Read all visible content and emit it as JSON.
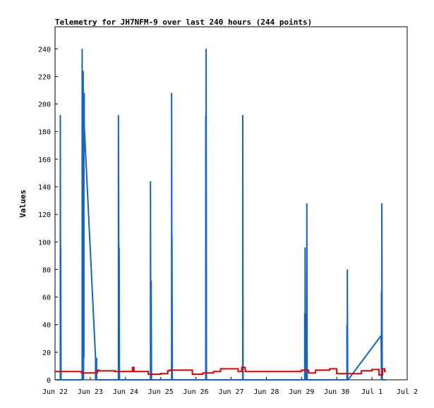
{
  "chart_data": {
    "type": "line",
    "title": "Telemetry for JH7NFM-9 over last 240 hours (244 points)",
    "xlabel": "",
    "ylabel": "Values",
    "x_ticks": [
      "Jun 22",
      "Jun 23",
      "Jun 24",
      "Jun 25",
      "Jun 26",
      "Jun 27",
      "Jun 28",
      "Jun 29",
      "Jun 30",
      "Jul 1",
      "Jul 2"
    ],
    "x_range_days": [
      0,
      10
    ],
    "y_ticks": [
      0,
      20,
      40,
      60,
      80,
      100,
      120,
      140,
      160,
      180,
      200,
      220,
      240
    ],
    "ylim": [
      0,
      256
    ],
    "grid": false,
    "series": [
      {
        "color": "#1565c0",
        "x": [
          0.0,
          0.15,
          0.15,
          0.16,
          0.16,
          0.17,
          0.17,
          0.77,
          0.77,
          0.78,
          0.78,
          0.79,
          0.79,
          0.8,
          0.8,
          0.81,
          0.81,
          0.82,
          0.82,
          0.83,
          0.83,
          1.15,
          1.15,
          1.17,
          1.17,
          1.18,
          1.18,
          1.19,
          1.19,
          1.8,
          1.8,
          1.82,
          1.82,
          1.83,
          1.83,
          2.71,
          2.71,
          2.72,
          2.72,
          2.73,
          2.73,
          2.74,
          2.74,
          2.75,
          2.75,
          3.31,
          3.31,
          3.32,
          3.32,
          3.33,
          3.33,
          4.28,
          4.28,
          4.29,
          4.29,
          4.3,
          4.3,
          5.33,
          5.33,
          5.34,
          5.34,
          7.09,
          7.09,
          7.1,
          7.1,
          7.11,
          7.11,
          7.12,
          7.12,
          7.15,
          7.15,
          7.16,
          7.16,
          8.29,
          8.29,
          8.3,
          8.3,
          8.31,
          8.31,
          8.32,
          8.32,
          9.26,
          9.27,
          9.27,
          9.28,
          9.28,
          9.29,
          9.29,
          9.4
        ],
        "y": [
          0,
          0,
          192,
          0,
          96,
          0,
          0,
          0,
          240,
          0,
          224,
          0,
          208,
          0,
          224,
          0,
          208,
          16,
          192,
          208,
          184,
          16,
          0,
          16,
          0,
          16,
          0,
          0,
          0,
          0,
          192,
          0,
          96,
          0,
          0,
          0,
          144,
          0,
          72,
          0,
          72,
          0,
          0,
          0,
          0,
          0,
          208,
          0,
          104,
          0,
          0,
          0,
          192,
          0,
          240,
          0,
          0,
          0,
          192,
          0,
          0,
          0,
          48,
          0,
          96,
          0,
          48,
          0,
          0,
          0,
          128,
          0,
          0,
          0,
          40,
          0,
          80,
          0,
          0,
          0,
          0,
          32,
          0,
          64,
          0,
          128,
          0,
          0,
          0
        ]
      },
      {
        "color": "#e00000",
        "x": [
          0.0,
          0.75,
          0.75,
          1.2,
          1.2,
          1.24,
          1.24,
          1.7,
          1.7,
          2.2,
          2.2,
          2.24,
          2.24,
          2.65,
          2.65,
          3.0,
          3.0,
          3.2,
          3.2,
          3.25,
          3.25,
          3.9,
          3.9,
          4.2,
          4.2,
          4.5,
          4.5,
          4.7,
          4.7,
          5.2,
          5.2,
          5.3,
          5.3,
          5.4,
          5.4,
          7.0,
          7.0,
          7.2,
          7.2,
          7.4,
          7.4,
          7.8,
          7.8,
          8.0,
          8.0,
          8.7,
          8.7,
          9.0,
          9.0,
          9.2,
          9.2,
          9.3,
          9.3,
          9.36,
          9.36,
          9.4
        ],
        "y": [
          6,
          6,
          5,
          5,
          7,
          7,
          6.5,
          6.5,
          6,
          6,
          9,
          9,
          6,
          6,
          4,
          4,
          4.5,
          4.5,
          6.5,
          6.5,
          7,
          7,
          4,
          4,
          5,
          5,
          6,
          6,
          8,
          8,
          6,
          6,
          9,
          9,
          6,
          6,
          7,
          7,
          5,
          5,
          7,
          7,
          8,
          8,
          4.5,
          4.5,
          6.5,
          6.5,
          7.5,
          7.5,
          3.5,
          3.5,
          8,
          8,
          6,
          6
        ]
      }
    ]
  }
}
